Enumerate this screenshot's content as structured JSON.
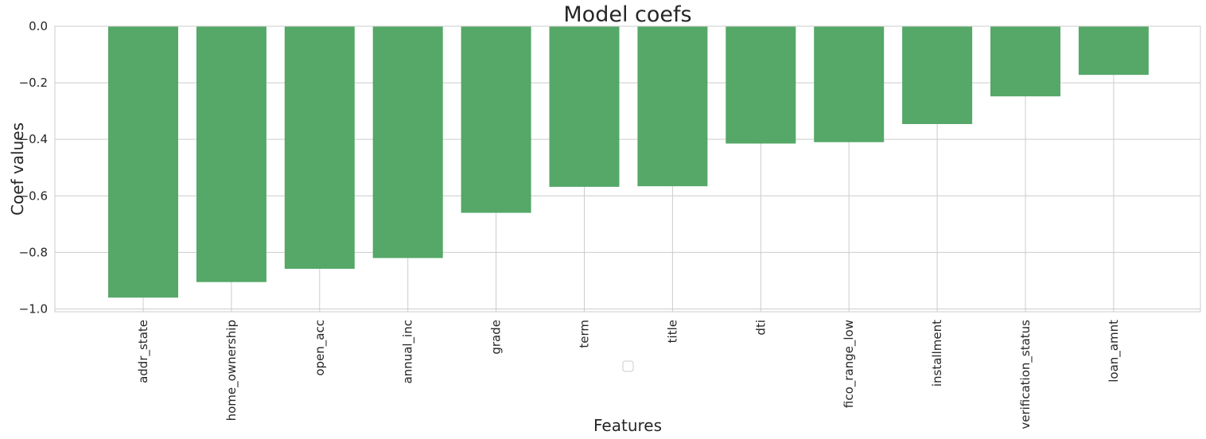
{
  "chart_data": {
    "type": "bar",
    "title": "Model coefs",
    "xlabel": "Features",
    "ylabel": "Coef values",
    "categories": [
      "addr_state",
      "home_ownership",
      "open_acc",
      "annual_inc",
      "grade",
      "term",
      "title",
      "dti",
      "fico_range_low",
      "installment",
      "verification_status",
      "loan_amnt"
    ],
    "values": [
      -0.96,
      -0.905,
      -0.858,
      -0.82,
      -0.66,
      -0.568,
      -0.566,
      -0.415,
      -0.41,
      -0.346,
      -0.248,
      -0.172
    ],
    "ylim": [
      -1.01,
      0.0
    ],
    "yticks": [
      0.0,
      -0.2,
      -0.4,
      -0.6,
      -0.8,
      -1.0
    ],
    "ytick_labels": [
      "0.0",
      "−0.2",
      "−0.4",
      "−0.6",
      "−0.8",
      "−1.0"
    ],
    "grid": true,
    "legend": "empty, bottom-center",
    "colors": {
      "bar": "#55a868",
      "grid": "#cccccc",
      "text": "#262626",
      "background": "#ffffff"
    }
  }
}
